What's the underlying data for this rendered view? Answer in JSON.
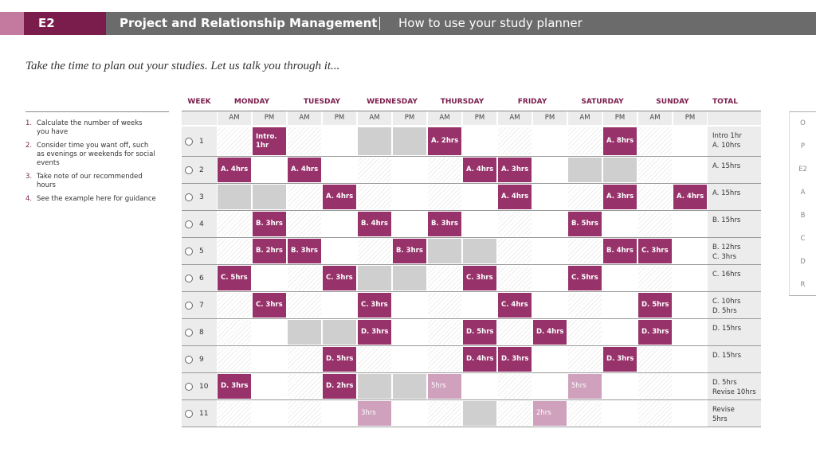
{
  "header": {
    "code": "E2",
    "title": "Project and Relationship Management",
    "subtitle": "How to use your study planner"
  },
  "intro": "Take the time to plan out your studies. Let us talk you through it...",
  "steps": [
    {
      "number": "1.",
      "text": "Calculate the number of weeks you have"
    },
    {
      "number": "2.",
      "text": "Consider time you want off, such as evenings or weekends for social events"
    },
    {
      "number": "3.",
      "text": "Take note of our recommended hours"
    },
    {
      "number": "4.",
      "text": "See the example here for guidance"
    }
  ],
  "table": {
    "week_header": "WEEK",
    "days": [
      "MONDAY",
      "TUESDAY",
      "WEDNESDAY",
      "THURSDAY",
      "FRIDAY",
      "SATURDAY",
      "SUNDAY"
    ],
    "slots": [
      "AM",
      "PM"
    ],
    "total_header": "TOTAL",
    "rows": [
      {
        "week": "1",
        "cells": [
          null,
          {
            "kind": "session",
            "text": [
              "Intro.",
              "1hr"
            ]
          },
          null,
          null,
          {
            "kind": "grey"
          },
          {
            "kind": "grey"
          },
          {
            "kind": "session",
            "text": [
              "A. 2hrs"
            ]
          },
          null,
          null,
          null,
          null,
          {
            "kind": "session",
            "text": [
              "A. 8hrs"
            ]
          },
          null,
          null
        ],
        "total": [
          "Intro 1hr",
          "A. 10hrs"
        ]
      },
      {
        "week": "2",
        "cells": [
          {
            "kind": "session",
            "text": [
              "A. 4hrs"
            ]
          },
          null,
          {
            "kind": "session",
            "text": [
              "A. 4hrs"
            ]
          },
          null,
          null,
          null,
          null,
          {
            "kind": "session",
            "text": [
              "A. 4hrs"
            ]
          },
          {
            "kind": "session",
            "text": [
              "A. 3hrs"
            ]
          },
          null,
          {
            "kind": "grey"
          },
          {
            "kind": "grey"
          },
          null,
          null
        ],
        "total": [
          "A. 15hrs"
        ]
      },
      {
        "week": "3",
        "cells": [
          {
            "kind": "grey"
          },
          {
            "kind": "grey"
          },
          null,
          {
            "kind": "session",
            "text": [
              "A. 4hrs"
            ]
          },
          null,
          null,
          null,
          null,
          {
            "kind": "session",
            "text": [
              "A. 4hrs"
            ]
          },
          null,
          null,
          {
            "kind": "session",
            "text": [
              "A. 3hrs"
            ]
          },
          null,
          {
            "kind": "session",
            "text": [
              "A. 4hrs"
            ]
          }
        ],
        "total": [
          "A. 15hrs"
        ]
      },
      {
        "week": "4",
        "cells": [
          null,
          {
            "kind": "session",
            "text": [
              "B. 3hrs"
            ]
          },
          null,
          null,
          {
            "kind": "session",
            "text": [
              "B. 4hrs"
            ]
          },
          null,
          {
            "kind": "session",
            "text": [
              "B. 3hrs"
            ]
          },
          null,
          null,
          null,
          {
            "kind": "session",
            "text": [
              "B. 5hrs"
            ]
          },
          null,
          null,
          null
        ],
        "total": [
          "B. 15hrs"
        ]
      },
      {
        "week": "5",
        "cells": [
          null,
          {
            "kind": "session",
            "text": [
              "B. 2hrs"
            ]
          },
          {
            "kind": "session",
            "text": [
              "B. 3hrs"
            ]
          },
          null,
          null,
          {
            "kind": "session",
            "text": [
              "B. 3hrs"
            ]
          },
          {
            "kind": "grey"
          },
          {
            "kind": "grey"
          },
          null,
          null,
          null,
          {
            "kind": "session",
            "text": [
              "B. 4hrs"
            ]
          },
          {
            "kind": "session",
            "text": [
              "C. 3hrs"
            ]
          },
          null
        ],
        "total": [
          "B. 12hrs",
          "C. 3hrs"
        ]
      },
      {
        "week": "6",
        "cells": [
          {
            "kind": "session",
            "text": [
              "C. 5hrs"
            ]
          },
          null,
          null,
          {
            "kind": "session",
            "text": [
              "C. 3hrs"
            ]
          },
          {
            "kind": "grey"
          },
          {
            "kind": "grey"
          },
          null,
          {
            "kind": "session",
            "text": [
              "C. 3hrs"
            ]
          },
          null,
          null,
          {
            "kind": "session",
            "text": [
              "C. 5hrs"
            ]
          },
          null,
          null,
          null
        ],
        "total": [
          "C. 16hrs"
        ]
      },
      {
        "week": "7",
        "cells": [
          null,
          {
            "kind": "session",
            "text": [
              "C. 3hrs"
            ]
          },
          null,
          null,
          {
            "kind": "session",
            "text": [
              "C. 3hrs"
            ]
          },
          null,
          null,
          null,
          {
            "kind": "session",
            "text": [
              "C. 4hrs"
            ]
          },
          null,
          null,
          null,
          {
            "kind": "session",
            "text": [
              "D. 5hrs"
            ]
          },
          null
        ],
        "total": [
          "C. 10hrs",
          "D. 5hrs"
        ]
      },
      {
        "week": "8",
        "cells": [
          null,
          null,
          {
            "kind": "grey"
          },
          {
            "kind": "grey"
          },
          {
            "kind": "session",
            "text": [
              "D. 3hrs"
            ]
          },
          null,
          null,
          {
            "kind": "session",
            "text": [
              "D. 5hrs"
            ]
          },
          null,
          {
            "kind": "session",
            "text": [
              "D. 4hrs"
            ]
          },
          null,
          null,
          {
            "kind": "session",
            "text": [
              "D. 3hrs"
            ]
          },
          null
        ],
        "total": [
          "D. 15hrs"
        ]
      },
      {
        "week": "9",
        "cells": [
          null,
          null,
          null,
          {
            "kind": "session",
            "text": [
              "D. 5hrs"
            ]
          },
          null,
          null,
          null,
          {
            "kind": "session",
            "text": [
              "D. 4hrs"
            ]
          },
          {
            "kind": "session",
            "text": [
              "D. 3hrs"
            ]
          },
          null,
          null,
          {
            "kind": "session",
            "text": [
              "D. 3hrs"
            ]
          },
          null,
          null
        ],
        "total": [
          "D. 15hrs"
        ]
      },
      {
        "week": "10",
        "cells": [
          {
            "kind": "session",
            "text": [
              "D. 3hrs"
            ]
          },
          null,
          null,
          {
            "kind": "session",
            "text": [
              "D. 2hrs"
            ]
          },
          {
            "kind": "grey"
          },
          {
            "kind": "grey"
          },
          {
            "kind": "revise",
            "text": [
              "5hrs"
            ]
          },
          null,
          null,
          null,
          {
            "kind": "revise",
            "text": [
              "5hrs"
            ]
          },
          null,
          null,
          null
        ],
        "total": [
          "D. 5hrs",
          "Revise 10hrs"
        ]
      },
      {
        "week": "11",
        "cells": [
          null,
          null,
          null,
          null,
          {
            "kind": "revise",
            "text": [
              "3hrs"
            ]
          },
          null,
          null,
          {
            "kind": "grey"
          },
          null,
          {
            "kind": "revise",
            "text": [
              "2hrs"
            ]
          },
          null,
          null,
          null,
          null
        ],
        "total": [
          "Revise",
          "5hrs"
        ]
      }
    ]
  },
  "side_tabs": [
    "O",
    "P",
    "E2",
    "A",
    "B",
    "C",
    "D",
    "R"
  ]
}
